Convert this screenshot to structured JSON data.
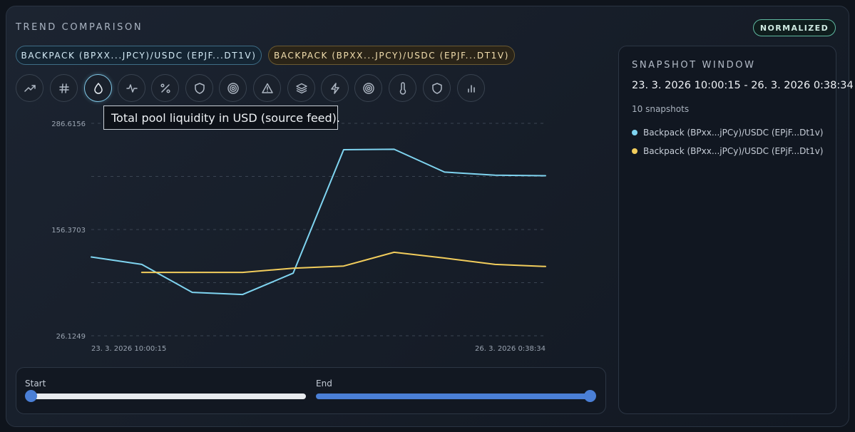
{
  "header": {
    "title": "TREND COMPARISON",
    "badge": "NORMALIZED"
  },
  "pills": [
    {
      "label": "BACKPACK (BPXX...JPCY)/USDC (EPJF...DT1V)",
      "color": "#7fd4f0"
    },
    {
      "label": "BACKPACK (BPXX...JPCY)/USDC (EPJF...DT1V)",
      "color": "#f2cd5c"
    }
  ],
  "metric_icons": [
    {
      "name": "trend-icon",
      "active": false
    },
    {
      "name": "hash-icon",
      "active": false
    },
    {
      "name": "droplet-icon",
      "active": true
    },
    {
      "name": "pulse-icon",
      "active": false
    },
    {
      "name": "percent-icon",
      "active": false
    },
    {
      "name": "shield-icon",
      "active": false
    },
    {
      "name": "target-icon",
      "active": false
    },
    {
      "name": "warning-icon",
      "active": false
    },
    {
      "name": "layers-icon",
      "active": false
    },
    {
      "name": "lightning-icon",
      "active": false
    },
    {
      "name": "target-icon",
      "active": false
    },
    {
      "name": "thermometer-icon",
      "active": false
    },
    {
      "name": "shield-icon",
      "active": false
    },
    {
      "name": "bar-chart-icon",
      "active": false
    }
  ],
  "tooltip": "Total pool liquidity in USD (source feed).",
  "chart_data": {
    "type": "line",
    "x": [
      "23. 3. 2026 10:00:15",
      "",
      "",
      "",
      "",
      "",
      "",
      "",
      "",
      "26. 3. 2026 0:38:34"
    ],
    "x_tick_labels": [
      "23. 3. 2026 10:00:15",
      "26. 3. 2026 0:38:34"
    ],
    "y_tick_labels": [
      "286.6156",
      "156.3703",
      "26.1249"
    ],
    "ylim": [
      26.1249,
      286.6156
    ],
    "grid": true,
    "series": [
      {
        "name": "Backpack (BPxx...jPCy)/USDC (EPjF...Dt1v)",
        "color": "#7fd4f0",
        "values": [
          122.7,
          113.6,
          79.4,
          76.7,
          102.9,
          254.3,
          254.8,
          226.8,
          223.1,
          222.4
        ]
      },
      {
        "name": "Backpack (BPxx...jPCy)/USDC (EPjF...Dt1v)",
        "color": "#f2cd5c",
        "values": [
          null,
          103.8,
          103.8,
          103.8,
          109.0,
          111.6,
          128.5,
          121.4,
          113.6,
          111.1
        ]
      }
    ]
  },
  "slider": {
    "start_label": "Start",
    "end_label": "End",
    "start_value": 0,
    "end_value": 1
  },
  "side": {
    "title": "SNAPSHOT WINDOW",
    "range": "23. 3. 2026 10:00:15 - 26. 3. 2026 0:38:34",
    "count": "10 snapshots",
    "legend": [
      {
        "label": "Backpack (BPxx...jPCy)/USDC (EPjF...Dt1v)",
        "color": "#7fd4f0"
      },
      {
        "label": "Backpack (BPxx...jPCy)/USDC (EPjF...Dt1v)",
        "color": "#f2cd5c"
      }
    ]
  }
}
